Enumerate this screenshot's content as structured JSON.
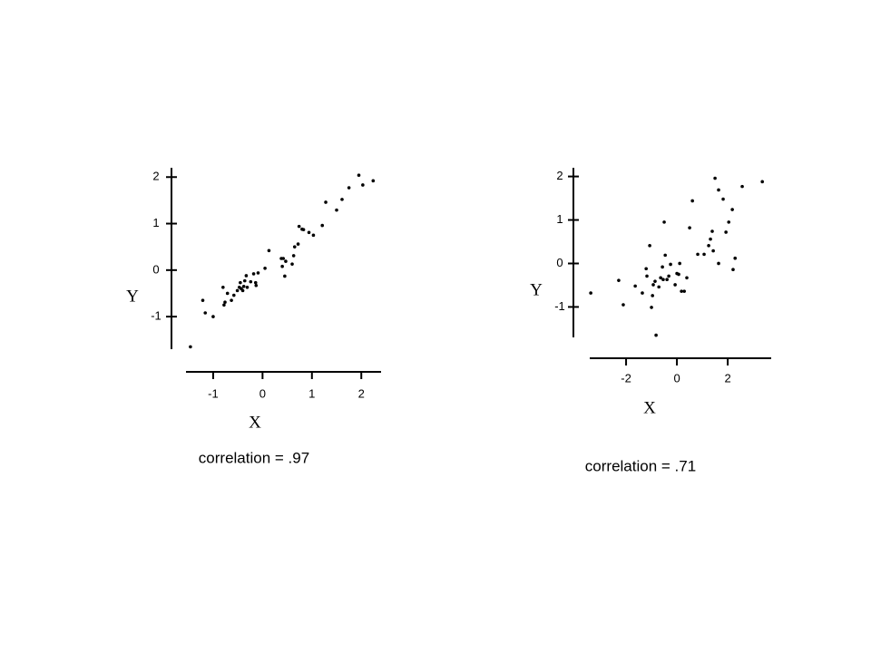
{
  "chart_data": [
    {
      "type": "scatter",
      "x_label": "X",
      "y_label": "Y",
      "annotation": "correlation = .97",
      "color": "#000000",
      "xlim": [
        -1.55,
        2.4
      ],
      "ylim": [
        -1.7,
        2.2
      ],
      "xticks": [
        -1,
        0,
        1,
        2
      ],
      "yticks": [
        -1,
        0,
        1,
        2
      ],
      "x": [
        -1.46,
        -1.21,
        -1.16,
        -1.0,
        -0.8,
        -0.76,
        -0.78,
        -0.71,
        -0.63,
        -0.58,
        -0.51,
        -0.47,
        -0.45,
        -0.43,
        -0.4,
        -0.38,
        -0.36,
        -0.33,
        -0.31,
        -0.24,
        -0.18,
        -0.14,
        -0.13,
        -0.09,
        0.05,
        0.13,
        0.38,
        0.4,
        0.42,
        0.45,
        0.47,
        0.6,
        0.63,
        0.65,
        0.72,
        0.74,
        0.8,
        0.83,
        0.94,
        1.03,
        1.21,
        1.28,
        1.5,
        1.61,
        1.75,
        1.95,
        2.03,
        2.24
      ],
      "values": [
        -1.65,
        -0.65,
        -0.92,
        -1.0,
        -0.37,
        -0.69,
        -0.75,
        -0.5,
        -0.65,
        -0.54,
        -0.44,
        -0.37,
        -0.27,
        -0.4,
        -0.44,
        -0.35,
        -0.23,
        -0.12,
        -0.37,
        -0.25,
        -0.08,
        -0.27,
        -0.33,
        -0.06,
        0.04,
        0.42,
        0.25,
        0.08,
        0.25,
        -0.13,
        0.19,
        0.13,
        0.31,
        0.5,
        0.56,
        0.94,
        0.88,
        0.87,
        0.81,
        0.75,
        0.96,
        1.46,
        1.29,
        1.52,
        1.77,
        2.04,
        1.83,
        1.92
      ]
    },
    {
      "type": "scatter",
      "x_label": "X",
      "y_label": "Y",
      "annotation": "correlation = .71",
      "color": "#000000",
      "xlim": [
        -3.43,
        3.71
      ],
      "ylim": [
        -1.7,
        2.2
      ],
      "xticks": [
        -2,
        0,
        2
      ],
      "yticks": [
        -1,
        0,
        1,
        2
      ],
      "x": [
        -3.39,
        -2.29,
        -2.11,
        -1.64,
        -1.36,
        -1.21,
        -1.18,
        -1.07,
        -1.0,
        -0.96,
        -0.93,
        -0.86,
        -0.82,
        -0.71,
        -0.64,
        -0.57,
        -0.54,
        -0.5,
        -0.46,
        -0.39,
        -0.32,
        -0.25,
        -0.07,
        0.0,
        0.07,
        0.11,
        0.18,
        0.29,
        0.39,
        0.5,
        0.61,
        0.82,
        1.07,
        1.25,
        1.32,
        1.39,
        1.43,
        1.5,
        1.64,
        1.64,
        1.82,
        1.93,
        2.04,
        2.18,
        2.21,
        2.29,
        2.57,
        3.36
      ],
      "values": [
        -0.68,
        -0.39,
        -0.95,
        -0.52,
        -0.68,
        -0.12,
        -0.29,
        0.41,
        -1.01,
        -0.74,
        -0.49,
        -0.41,
        -1.65,
        -0.54,
        -0.33,
        -0.08,
        -0.37,
        0.95,
        0.19,
        -0.37,
        -0.29,
        -0.02,
        -0.49,
        -0.23,
        -0.25,
        0.0,
        -0.64,
        -0.64,
        -0.33,
        0.82,
        1.44,
        0.21,
        0.21,
        0.41,
        0.56,
        0.74,
        0.29,
        1.96,
        1.69,
        0.0,
        1.48,
        0.72,
        0.95,
        1.24,
        -0.14,
        0.12,
        1.77,
        1.88
      ]
    }
  ]
}
